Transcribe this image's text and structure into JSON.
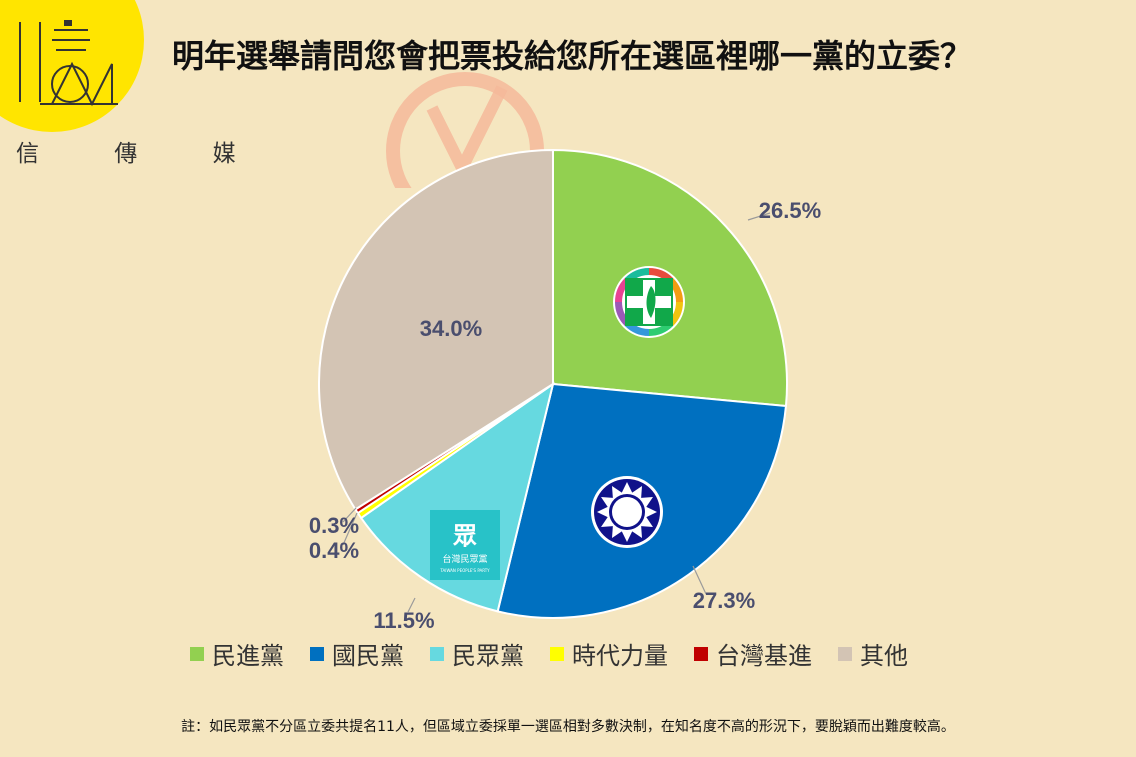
{
  "brand": {
    "subtitle": "信 傳 媒",
    "logo_color": "#ffe500"
  },
  "title": "明年選舉請問您會把票投給您所在選區裡哪一黨的立委？",
  "chart_data": {
    "type": "pie",
    "start_angle_deg": 0,
    "direction": "clockwise",
    "title": "明年選舉請問您會把票投給您所在選區裡哪一黨的立委？",
    "series": [
      {
        "name": "民進黨",
        "value": 26.5,
        "label": "26.5%",
        "color": "#92d050",
        "icon": "dpp-emblem-icon"
      },
      {
        "name": "國民黨",
        "value": 27.3,
        "label": "27.3%",
        "color": "#0070c0",
        "icon": "kmt-sun-emblem-icon"
      },
      {
        "name": "民眾黨",
        "value": 11.5,
        "label": "11.5%",
        "color": "#66d9e0",
        "icon": "tpp-logo-icon"
      },
      {
        "name": "時代力量",
        "value": 0.4,
        "label": "0.4%",
        "color": "#ffff00"
      },
      {
        "name": "台灣基進",
        "value": 0.3,
        "label": "0.3%",
        "color": "#c00000"
      },
      {
        "name": "其他",
        "value": 34.0,
        "label": "34.0%",
        "color": "#d3c4b4"
      }
    ],
    "legend_position": "bottom"
  },
  "icons": {
    "tpp_glyph": "眾",
    "tpp_name": "台灣民眾黨",
    "tpp_en": "TAIWAN PEOPLE'S PARTY"
  },
  "note": "註：如民眾黨不分區立委共提名11人，但區域立委採單一選區相對多數決制，在知名度不高的形況下，要脫穎而出難度較高。"
}
